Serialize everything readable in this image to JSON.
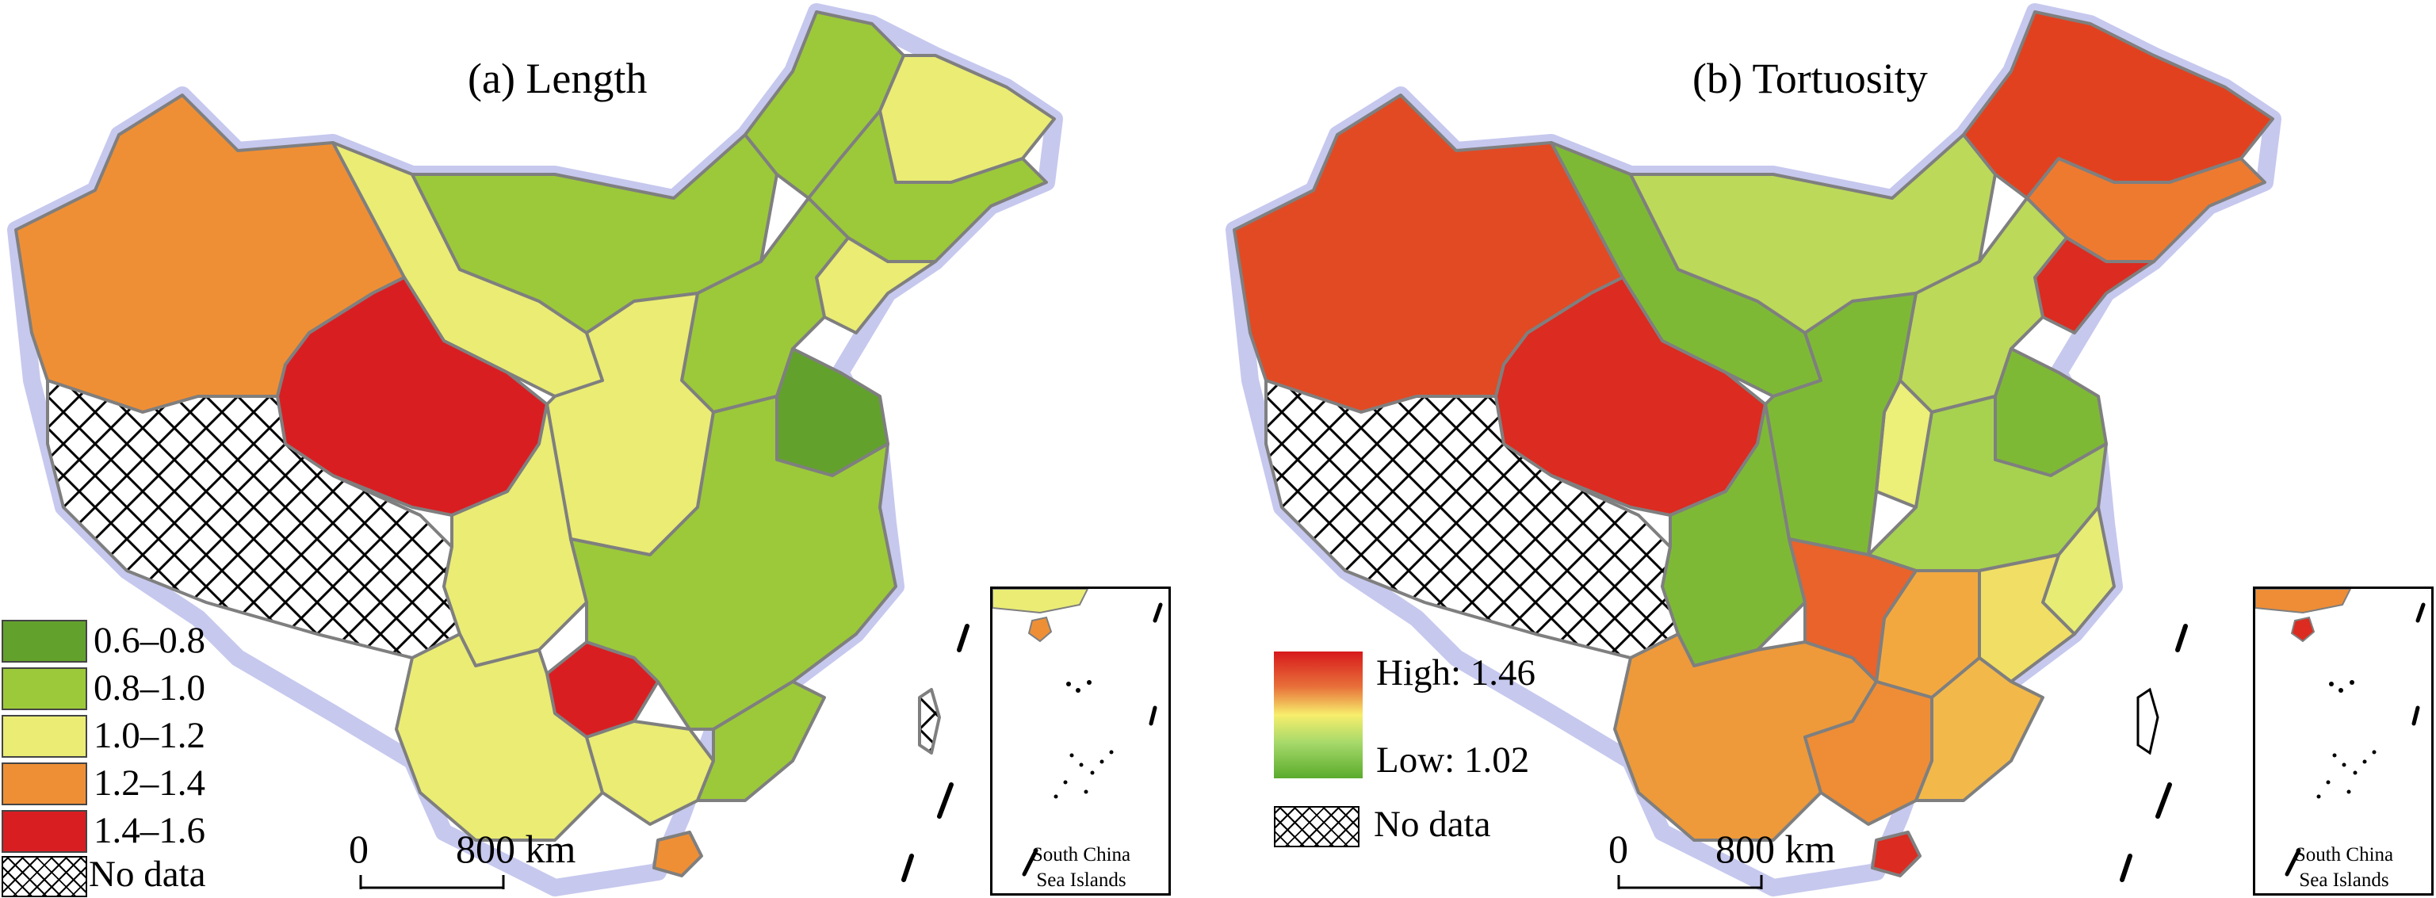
{
  "panels": [
    {
      "title": "(a) Length",
      "legend": {
        "type": "classed",
        "classes": [
          {
            "label": "0.6–0.8",
            "color": "#63a12d"
          },
          {
            "label": "0.8–1.0",
            "color": "#9cc93a"
          },
          {
            "label": "1.0–1.2",
            "color": "#eaec74"
          },
          {
            "label": "1.2–1.4",
            "color": "#ef8f35"
          },
          {
            "label": "1.4–1.6",
            "color": "#d91e22"
          }
        ],
        "no_data_label": "No data"
      },
      "scale_bar": {
        "start": "0",
        "end": "800 km"
      },
      "inset_label": [
        "South China",
        "Sea Islands"
      ]
    },
    {
      "title": "(b) Tortuosity",
      "legend": {
        "type": "continuous",
        "high_label": "High: 1.46",
        "low_label": "Low: 1.02",
        "no_data_label": "No data",
        "colors": {
          "high": "#d7191c",
          "mid": "#f7ee6c",
          "low": "#5aab2c"
        }
      },
      "scale_bar": {
        "start": "0",
        "end": "800 km"
      },
      "inset_label": [
        "South China",
        "Sea Islands"
      ]
    }
  ],
  "colors": {
    "halo": "#c6c8ee",
    "province_border": "#7f7f7f",
    "hatch": "#000000"
  },
  "regions_a": [
    {
      "id": "xinjiang",
      "color": "#ef8f35"
    },
    {
      "id": "tibet",
      "color": "no-data"
    },
    {
      "id": "qinghai",
      "color": "#d91e22"
    },
    {
      "id": "gansu",
      "color": "#eaec74"
    },
    {
      "id": "inner-mongolia",
      "color": "#9cc93a"
    },
    {
      "id": "heilongjiang",
      "color": "#9cc93a"
    },
    {
      "id": "heilongjiang-north",
      "color": "#eaec74"
    },
    {
      "id": "jilin",
      "color": "#9cc93a"
    },
    {
      "id": "liaoning",
      "color": "#eaec74"
    },
    {
      "id": "hebei",
      "color": "#9cc93a"
    },
    {
      "id": "shandong",
      "color": "#63a12d"
    },
    {
      "id": "shaanxi",
      "color": "#eaec74"
    },
    {
      "id": "sichuan",
      "color": "#eaec74"
    },
    {
      "id": "yunnan",
      "color": "#eaec74"
    },
    {
      "id": "guizhou",
      "color": "#d91e22"
    },
    {
      "id": "guangxi",
      "color": "#eaec74"
    },
    {
      "id": "guangdong",
      "color": "#9cc93a"
    },
    {
      "id": "central",
      "color": "#9cc93a"
    },
    {
      "id": "hainan",
      "color": "#ef8f35"
    },
    {
      "id": "taiwan",
      "color": "no-data"
    }
  ],
  "regions_b": [
    {
      "id": "xinjiang",
      "color": "#e24a23"
    },
    {
      "id": "tibet",
      "color": "no-data"
    },
    {
      "id": "qinghai",
      "color": "#dc2b20"
    },
    {
      "id": "gansu",
      "color": "#7eb936"
    },
    {
      "id": "inner-mongolia",
      "color": "#bcd95a"
    },
    {
      "id": "heilongjiang",
      "color": "#e2411f"
    },
    {
      "id": "jilin",
      "color": "#ee7a30"
    },
    {
      "id": "liaoning",
      "color": "#dc2b20"
    },
    {
      "id": "hebei",
      "color": "#bcd95a"
    },
    {
      "id": "shanxi",
      "color": "#ecef78"
    },
    {
      "id": "shandong",
      "color": "#7eb936"
    },
    {
      "id": "shaanxi",
      "color": "#7eb936"
    },
    {
      "id": "sichuan",
      "color": "#7eb936"
    },
    {
      "id": "henan",
      "color": "#a6d250"
    },
    {
      "id": "yunnan",
      "color": "#ee9a3a"
    },
    {
      "id": "guizhou",
      "color": "#e9632b"
    },
    {
      "id": "hunan",
      "color": "#f3a83f"
    },
    {
      "id": "guangxi",
      "color": "#ee8d36"
    },
    {
      "id": "guangdong",
      "color": "#f2b84a"
    },
    {
      "id": "fujian",
      "color": "#f0df64"
    },
    {
      "id": "zhejiang",
      "color": "#e7ec75"
    },
    {
      "id": "hainan",
      "color": "#dc2b20"
    }
  ]
}
